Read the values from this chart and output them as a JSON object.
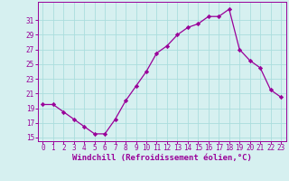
{
  "x": [
    0,
    1,
    2,
    3,
    4,
    5,
    6,
    7,
    8,
    9,
    10,
    11,
    12,
    13,
    14,
    15,
    16,
    17,
    18,
    19,
    20,
    21,
    22,
    23
  ],
  "y": [
    19.5,
    19.5,
    18.5,
    17.5,
    16.5,
    15.5,
    15.5,
    17.5,
    20.0,
    22.0,
    24.0,
    26.5,
    27.5,
    29.0,
    30.0,
    30.5,
    31.5,
    31.5,
    32.5,
    27.0,
    25.5,
    24.5,
    21.5,
    20.5
  ],
  "line_color": "#990099",
  "marker": "D",
  "marker_size": 2.2,
  "bg_color": "#d6f0f0",
  "grid_color": "#aadddd",
  "xlabel": "Windchill (Refroidissement éolien,°C)",
  "xlabel_fontsize": 6.5,
  "ylim": [
    14.5,
    33.5
  ],
  "xlim": [
    -0.5,
    23.5
  ],
  "yticks": [
    15,
    17,
    19,
    21,
    23,
    25,
    27,
    29,
    31
  ],
  "xticks": [
    0,
    1,
    2,
    3,
    4,
    5,
    6,
    7,
    8,
    9,
    10,
    11,
    12,
    13,
    14,
    15,
    16,
    17,
    18,
    19,
    20,
    21,
    22,
    23
  ],
  "tick_color": "#990099",
  "tick_fontsize": 5.5,
  "spine_color": "#990099"
}
